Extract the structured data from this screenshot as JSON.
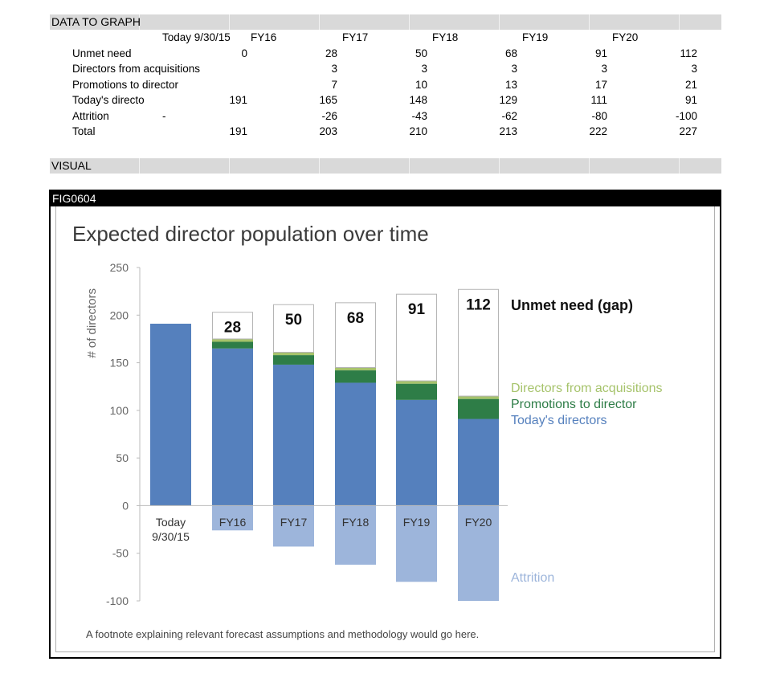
{
  "sections": {
    "data_label": "DATA TO GRAPH",
    "visual_label": "VISUAL",
    "figure_id": "FIG0604"
  },
  "table": {
    "header": [
      "Today 9/30/15",
      "FY16",
      "FY17",
      "FY18",
      "FY19",
      "FY20"
    ],
    "rows": [
      {
        "label": "Unmet need",
        "cells": [
          "0",
          "28",
          "50",
          "68",
          "91",
          "112"
        ]
      },
      {
        "label": "Directors from acquisitions",
        "cells": [
          "",
          "3",
          "3",
          "3",
          "3",
          "3"
        ]
      },
      {
        "label": "Promotions to director",
        "cells": [
          "",
          "7",
          "10",
          "13",
          "17",
          "21"
        ]
      },
      {
        "label": "Today's directo",
        "cells": [
          "191",
          "165",
          "148",
          "129",
          "111",
          "91"
        ]
      },
      {
        "label": "Attrition",
        "dash": "-",
        "cells": [
          "",
          "-26",
          "-43",
          "-62",
          "-80",
          "-100"
        ]
      },
      {
        "label": "Total",
        "cells": [
          "191",
          "203",
          "210",
          "213",
          "222",
          "227"
        ]
      }
    ]
  },
  "chart_data": {
    "type": "bar",
    "stacked": true,
    "title": "Expected director population over time",
    "ylabel": "# of directors",
    "xlabel": "",
    "ylim": [
      -100,
      250
    ],
    "yticks": [
      250,
      200,
      150,
      100,
      50,
      0,
      -50,
      -100
    ],
    "categories": [
      "Today\n9/30/15",
      "FY16",
      "FY17",
      "FY18",
      "FY19",
      "FY20"
    ],
    "category_lines": [
      [
        "Today",
        "9/30/15"
      ],
      [
        "FY16"
      ],
      [
        "FY17"
      ],
      [
        "FY18"
      ],
      [
        "FY19"
      ],
      [
        "FY20"
      ]
    ],
    "series": [
      {
        "name": "Today's directors",
        "color": "#5580bd",
        "values": [
          191,
          165,
          148,
          129,
          111,
          91
        ]
      },
      {
        "name": "Promotions to director",
        "color": "#2e7d47",
        "values": [
          0,
          7,
          10,
          13,
          17,
          21
        ]
      },
      {
        "name": "Directors from acquisitions",
        "color": "#a6c36b",
        "values": [
          0,
          3,
          3,
          3,
          3,
          3
        ]
      },
      {
        "name": "Unmet need (gap)",
        "color": "#ffffff",
        "values": [
          0,
          28,
          50,
          68,
          91,
          112
        ]
      },
      {
        "name": "Attrition",
        "color": "#9db5db",
        "values": [
          0,
          -26,
          -43,
          -62,
          -80,
          -100
        ]
      }
    ],
    "gap_labels": [
      "28",
      "50",
      "68",
      "91",
      "112"
    ],
    "legend": [
      {
        "text": "Unmet need (gap)",
        "color": "#111111",
        "bold": true
      },
      {
        "text": "Directors from acquisitions",
        "color": "#a6c36b"
      },
      {
        "text": "Promotions to director",
        "color": "#2e7d47"
      },
      {
        "text": "Today's directors",
        "color": "#5580bd"
      },
      {
        "text": "Attrition",
        "color": "#9db5db"
      }
    ]
  },
  "footnote": "A footnote explaining relevant forecast assumptions and methodology would go here."
}
